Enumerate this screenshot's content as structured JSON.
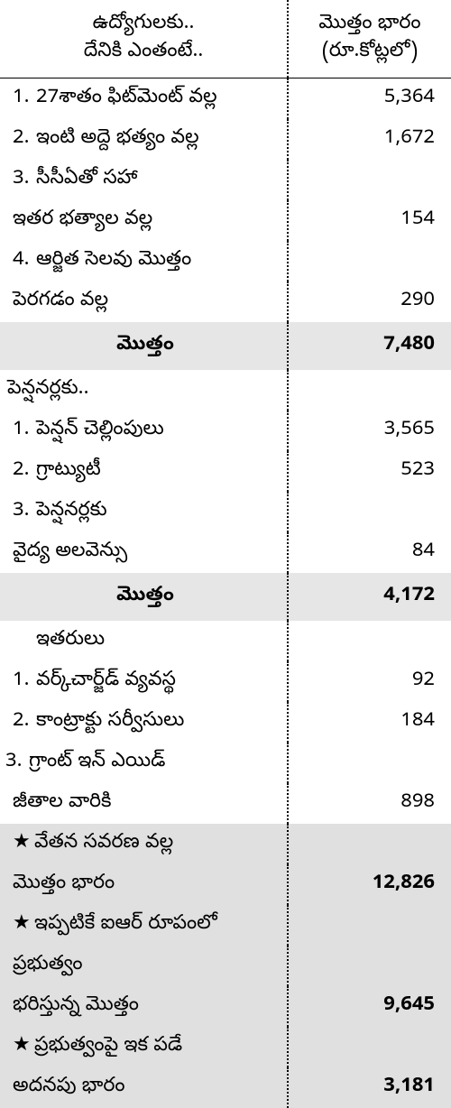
{
  "header": {
    "left": "ఉద్యోగులకు..\nదేనికి ఎంతంటే..",
    "right": "మొత్తం భారం\n(రూ.కోట్లలో)"
  },
  "section1": {
    "items": [
      {
        "idx": "1.",
        "label": "27శాతం ఫిట్‌మెంట్ వల్ల",
        "value": "5,364"
      },
      {
        "idx": "2.",
        "label": "ఇంటి అద్దె భత్యం వల్ల",
        "value": "1,672"
      },
      {
        "idx": "3.",
        "label": "సీసీఏతో సహా",
        "cont": "ఇతర భత్యాల వల్ల",
        "value": "154"
      },
      {
        "idx": "4.",
        "label": "ఆర్జిత సెలవు మొత్తం",
        "cont": "పెరగడం వల్ల",
        "value": "290"
      }
    ],
    "subtotal_label": "మొత్తం",
    "subtotal_value": "7,480"
  },
  "section2": {
    "title": "పెన్షనర్లకు..",
    "items": [
      {
        "idx": "1.",
        "label": "పెన్షన్ చెల్లింపులు",
        "value": "3,565"
      },
      {
        "idx": "2.",
        "label": "గ్రాట్యుటీ",
        "value": "523"
      },
      {
        "idx": "3.",
        "label": "పెన్షనర్లకు",
        "cont": "వైద్య అలవెన్సు",
        "value": "84"
      }
    ],
    "subtotal_label": "మొత్తం",
    "subtotal_value": "4,172"
  },
  "section3": {
    "title": "ఇతరులు",
    "items": [
      {
        "idx": "1.",
        "label": "వర్క్‌చార్జ్‌డ్ వ్యవస్థ",
        "value": "92"
      },
      {
        "idx": "2.",
        "label": "కాంట్రాక్టు సర్వీసులు",
        "value": "184"
      },
      {
        "idx": "3.",
        "label": "గ్రాంట్ ఇన్ ఎయిడ్",
        "cont": "జీతాల వారికి",
        "value": "898"
      }
    ]
  },
  "summary": {
    "items": [
      {
        "star": "★",
        "line1": "వేతన సవరణ వల్ల",
        "line2": "మొత్తం భారం",
        "value": "12,826"
      },
      {
        "star": "★",
        "line1": "ఇప్పటికే ఐఆర్ రూపంలో",
        "line2": "ప్రభుత్వం",
        "line3": "భరిస్తున్న మొత్తం",
        "value": "9,645"
      },
      {
        "star": "★",
        "line1": "ప్రభుత్వంపై ఇక పడే",
        "line2": "అదనపు భారం",
        "value": "3,181"
      }
    ]
  },
  "colors": {
    "bg": "#ffffff",
    "text": "#000000",
    "shade": "#e0e0e0",
    "shade2": "#e6e6e6",
    "border": "#000000"
  }
}
